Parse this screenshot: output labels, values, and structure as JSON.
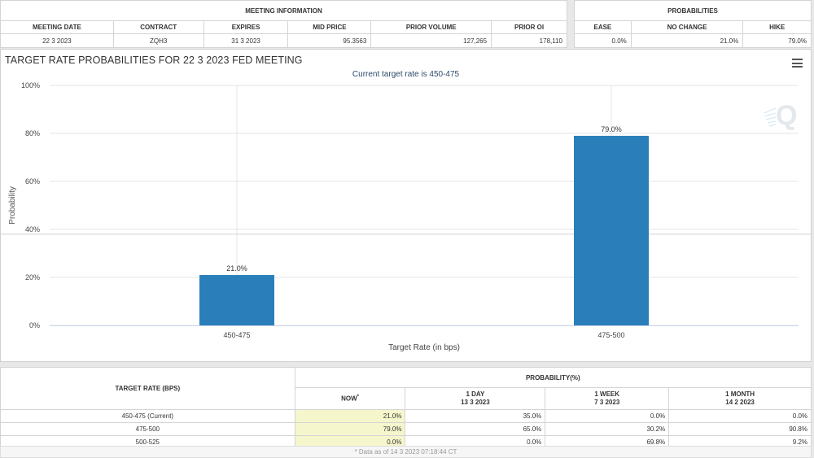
{
  "meeting_info": {
    "title": "MEETING INFORMATION",
    "headers": [
      "MEETING DATE",
      "CONTRACT",
      "EXPIRES",
      "MID PRICE",
      "PRIOR VOLUME",
      "PRIOR OI"
    ],
    "values": [
      "22 3 2023",
      "ZQH3",
      "31 3 2023",
      "95.3563",
      "127,265",
      "178,110"
    ]
  },
  "probabilities": {
    "title": "PROBABILITIES",
    "headers": [
      "EASE",
      "NO CHANGE",
      "HIKE"
    ],
    "values": [
      "0.0%",
      "21.0%",
      "79.0%"
    ]
  },
  "chart": {
    "title": "TARGET RATE PROBABILITIES FOR 22 3 2023 FED MEETING",
    "subtitle": "Current target rate is 450-475",
    "logo_letter": "Q"
  },
  "chart_data": {
    "type": "bar",
    "title": "TARGET RATE PROBABILITIES FOR 22 3 2023 FED MEETING",
    "subtitle": "Current target rate is 450-475",
    "categories": [
      "450-475",
      "475-500"
    ],
    "values": [
      21.0,
      79.0
    ],
    "data_labels": [
      "21.0%",
      "79.0%"
    ],
    "xlabel": "Target Rate (in bps)",
    "ylabel": "Probability",
    "ylim": [
      0,
      100
    ],
    "yticks": [
      0,
      20,
      40,
      60,
      80,
      100
    ],
    "ytick_labels": [
      "0%",
      "20%",
      "40%",
      "60%",
      "80%",
      "100%"
    ],
    "bar_color": "#2a7fba",
    "grid": true
  },
  "target_table": {
    "rate_header": "TARGET RATE (BPS)",
    "prob_header": "PROBABILITY(%)",
    "columns": [
      {
        "label": "NOW",
        "sup": "*",
        "date": ""
      },
      {
        "label": "1 DAY",
        "date": "13 3 2023"
      },
      {
        "label": "1 WEEK",
        "date": "7 3 2023"
      },
      {
        "label": "1 MONTH",
        "date": "14 2 2023"
      }
    ],
    "rows": [
      {
        "rate": "450-475 (Current)",
        "vals": [
          "21.0%",
          "35.0%",
          "0.0%",
          "0.0%"
        ]
      },
      {
        "rate": "475-500",
        "vals": [
          "79.0%",
          "65.0%",
          "30.2%",
          "90.8%"
        ]
      },
      {
        "rate": "500-525",
        "vals": [
          "0.0%",
          "0.0%",
          "69.8%",
          "9.2%"
        ]
      }
    ]
  },
  "footnote": "* Data as of 14 3 2023 07:18:44 CT"
}
